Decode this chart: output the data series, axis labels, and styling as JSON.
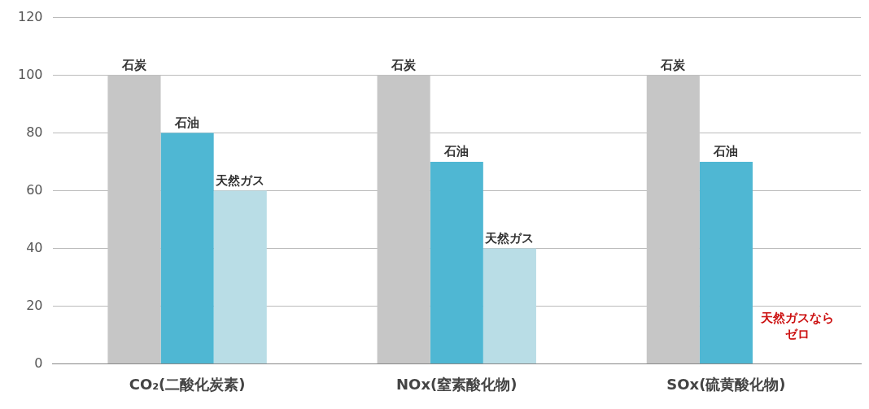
{
  "chart_data": {
    "type": "bar",
    "categories": [
      "CO₂(二酸化炭素)",
      "NOx(窒素酸化物)",
      "SOx(硫黄酸化物)"
    ],
    "series": [
      {
        "name": "石炭",
        "color": "#c6c6c6",
        "values": [
          100,
          100,
          100
        ]
      },
      {
        "name": "石油",
        "color": "#4fb7d3",
        "values": [
          80,
          70,
          70
        ]
      },
      {
        "name": "天然ガス",
        "color": "#b9dde6",
        "values": [
          60,
          40,
          0
        ]
      }
    ],
    "ylim": [
      0,
      120
    ],
    "yticks": [
      0,
      20,
      40,
      60,
      80,
      100,
      120
    ],
    "grid": "y",
    "legend": false,
    "annotations": [
      "天然ガスならゼロ"
    ]
  }
}
